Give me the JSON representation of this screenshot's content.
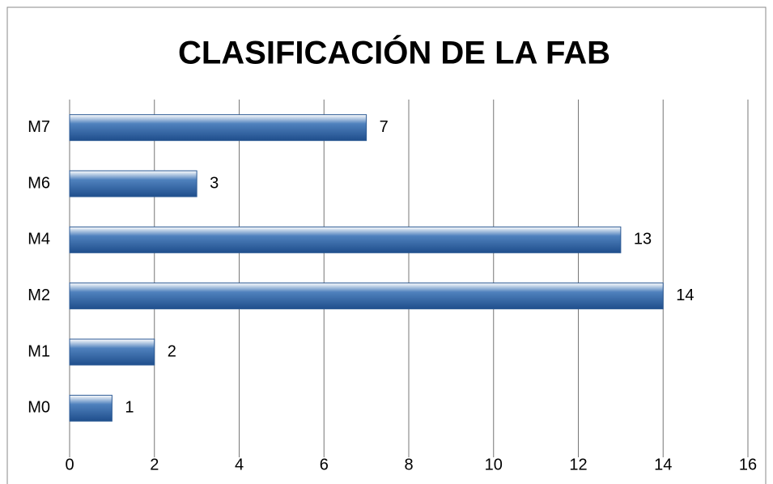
{
  "chart_data": {
    "type": "bar",
    "orientation": "horizontal",
    "title": "CLASIFICACIÓN DE LA FAB",
    "categories": [
      "M0",
      "M1",
      "M2",
      "M4",
      "M6",
      "M7"
    ],
    "values": [
      1,
      2,
      14,
      13,
      3,
      7
    ],
    "color": "#4f81bd",
    "xlim": [
      0,
      16
    ],
    "xticks": [
      0,
      2,
      4,
      6,
      8,
      10,
      12,
      14,
      16
    ],
    "grid": true
  }
}
